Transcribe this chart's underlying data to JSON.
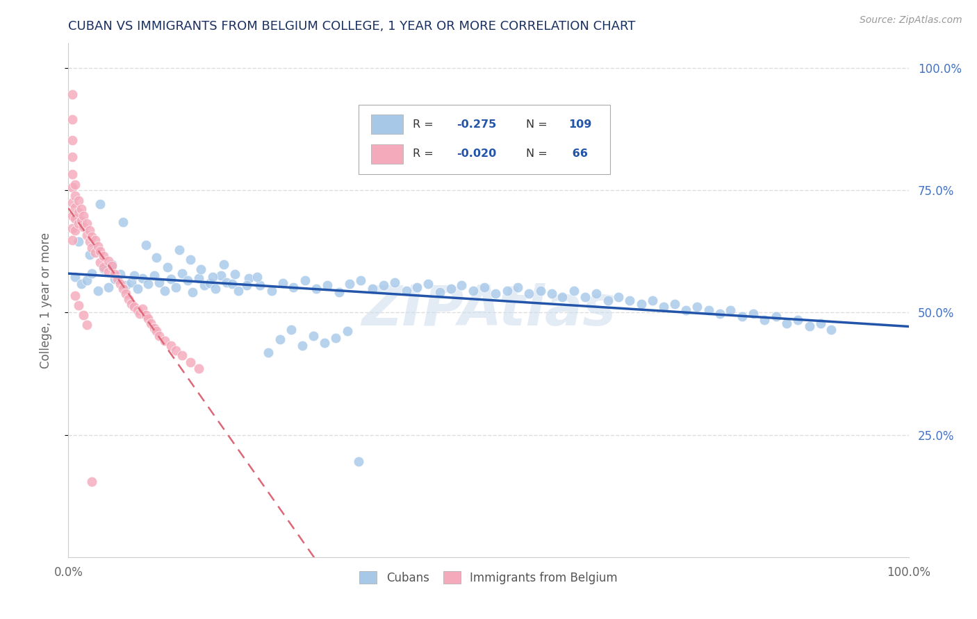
{
  "title": "CUBAN VS IMMIGRANTS FROM BELGIUM COLLEGE, 1 YEAR OR MORE CORRELATION CHART",
  "source": "Source: ZipAtlas.com",
  "ylabel": "College, 1 year or more",
  "ylabel_right_ticks": [
    "25.0%",
    "50.0%",
    "75.0%",
    "100.0%"
  ],
  "legend_label1": "Cubans",
  "legend_label2": "Immigrants from Belgium",
  "legend_r1": "-0.275",
  "legend_n1": "109",
  "legend_r2": "-0.020",
  "legend_n2": " 66",
  "blue_color": "#A8C8E8",
  "pink_color": "#F4AABB",
  "blue_line_color": "#2255AA",
  "pink_line_color": "#DD6677",
  "title_color": "#1A3060",
  "source_color": "#999999",
  "background_color": "#FFFFFF",
  "grid_color": "#DDDDDD",
  "watermark": "ZIPAtlas",
  "blue_x": [
    0.008,
    0.015,
    0.022,
    0.028,
    0.035,
    0.042,
    0.048,
    0.055,
    0.062,
    0.068,
    0.075,
    0.082,
    0.088,
    0.095,
    0.102,
    0.108,
    0.115,
    0.122,
    0.128,
    0.135,
    0.142,
    0.148,
    0.155,
    0.162,
    0.168,
    0.175,
    0.182,
    0.188,
    0.195,
    0.202,
    0.215,
    0.228,
    0.242,
    0.255,
    0.268,
    0.282,
    0.295,
    0.308,
    0.322,
    0.335,
    0.348,
    0.362,
    0.375,
    0.388,
    0.402,
    0.415,
    0.428,
    0.442,
    0.455,
    0.468,
    0.482,
    0.495,
    0.508,
    0.522,
    0.535,
    0.548,
    0.562,
    0.575,
    0.588,
    0.602,
    0.615,
    0.628,
    0.642,
    0.655,
    0.668,
    0.682,
    0.695,
    0.708,
    0.722,
    0.735,
    0.748,
    0.762,
    0.775,
    0.788,
    0.802,
    0.815,
    0.828,
    0.842,
    0.855,
    0.868,
    0.882,
    0.895,
    0.908,
    0.012,
    0.025,
    0.038,
    0.052,
    0.065,
    0.078,
    0.092,
    0.105,
    0.118,
    0.132,
    0.145,
    0.158,
    0.172,
    0.185,
    0.198,
    0.212,
    0.225,
    0.238,
    0.252,
    0.265,
    0.278,
    0.292,
    0.305,
    0.318,
    0.332,
    0.345
  ],
  "blue_y": [
    0.572,
    0.558,
    0.565,
    0.58,
    0.545,
    0.59,
    0.552,
    0.568,
    0.578,
    0.555,
    0.562,
    0.548,
    0.57,
    0.558,
    0.575,
    0.562,
    0.545,
    0.568,
    0.552,
    0.58,
    0.565,
    0.542,
    0.57,
    0.555,
    0.56,
    0.548,
    0.575,
    0.562,
    0.558,
    0.545,
    0.57,
    0.555,
    0.545,
    0.56,
    0.552,
    0.565,
    0.548,
    0.555,
    0.542,
    0.558,
    0.565,
    0.548,
    0.555,
    0.562,
    0.545,
    0.552,
    0.558,
    0.542,
    0.548,
    0.555,
    0.545,
    0.552,
    0.538,
    0.545,
    0.552,
    0.538,
    0.545,
    0.538,
    0.532,
    0.545,
    0.532,
    0.538,
    0.525,
    0.532,
    0.525,
    0.518,
    0.525,
    0.512,
    0.518,
    0.505,
    0.512,
    0.505,
    0.498,
    0.505,
    0.492,
    0.498,
    0.485,
    0.492,
    0.478,
    0.485,
    0.472,
    0.478,
    0.465,
    0.645,
    0.618,
    0.722,
    0.598,
    0.685,
    0.575,
    0.638,
    0.612,
    0.592,
    0.628,
    0.608,
    0.588,
    0.572,
    0.598,
    0.578,
    0.555,
    0.572,
    0.418,
    0.445,
    0.465,
    0.432,
    0.452,
    0.438,
    0.448,
    0.462,
    0.195
  ],
  "pink_x": [
    0.005,
    0.005,
    0.005,
    0.005,
    0.005,
    0.005,
    0.005,
    0.005,
    0.005,
    0.005,
    0.008,
    0.008,
    0.008,
    0.008,
    0.008,
    0.012,
    0.012,
    0.012,
    0.015,
    0.015,
    0.018,
    0.018,
    0.022,
    0.022,
    0.025,
    0.025,
    0.028,
    0.028,
    0.032,
    0.032,
    0.035,
    0.038,
    0.038,
    0.042,
    0.042,
    0.048,
    0.048,
    0.052,
    0.055,
    0.058,
    0.062,
    0.065,
    0.068,
    0.072,
    0.075,
    0.078,
    0.082,
    0.085,
    0.088,
    0.092,
    0.095,
    0.098,
    0.102,
    0.105,
    0.108,
    0.115,
    0.122,
    0.128,
    0.135,
    0.145,
    0.155,
    0.008,
    0.012,
    0.018,
    0.022,
    0.028
  ],
  "pink_y": [
    0.945,
    0.895,
    0.852,
    0.818,
    0.782,
    0.755,
    0.725,
    0.698,
    0.672,
    0.648,
    0.762,
    0.738,
    0.715,
    0.692,
    0.668,
    0.728,
    0.705,
    0.682,
    0.712,
    0.688,
    0.698,
    0.675,
    0.682,
    0.658,
    0.668,
    0.645,
    0.655,
    0.632,
    0.648,
    0.622,
    0.635,
    0.625,
    0.602,
    0.615,
    0.592,
    0.605,
    0.582,
    0.595,
    0.578,
    0.568,
    0.558,
    0.548,
    0.538,
    0.528,
    0.518,
    0.512,
    0.505,
    0.498,
    0.508,
    0.495,
    0.488,
    0.478,
    0.468,
    0.462,
    0.452,
    0.442,
    0.432,
    0.422,
    0.412,
    0.398,
    0.385,
    0.535,
    0.515,
    0.495,
    0.475,
    0.155
  ]
}
